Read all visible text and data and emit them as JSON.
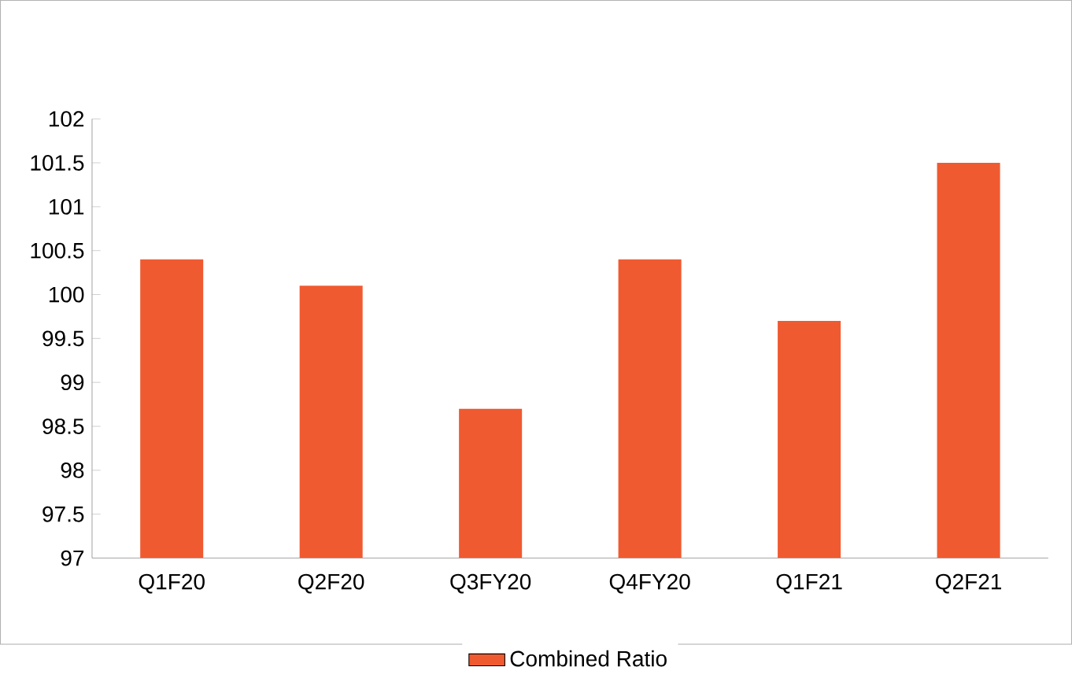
{
  "chart_data": {
    "type": "bar",
    "categories": [
      "Q1F20",
      "Q2F20",
      "Q3FY20",
      "Q4FY20",
      "Q1F21",
      "Q2F21"
    ],
    "series": [
      {
        "name": "Combined Ratio",
        "color": "#f05a30",
        "values": [
          100.4,
          100.1,
          98.7,
          100.4,
          99.7,
          101.5
        ]
      }
    ],
    "ylim": [
      97,
      102
    ],
    "yticks": [
      97,
      97.5,
      98,
      98.5,
      99,
      99.5,
      100,
      100.5,
      101,
      101.5,
      102
    ],
    "grid": false,
    "legend": "bottom"
  }
}
